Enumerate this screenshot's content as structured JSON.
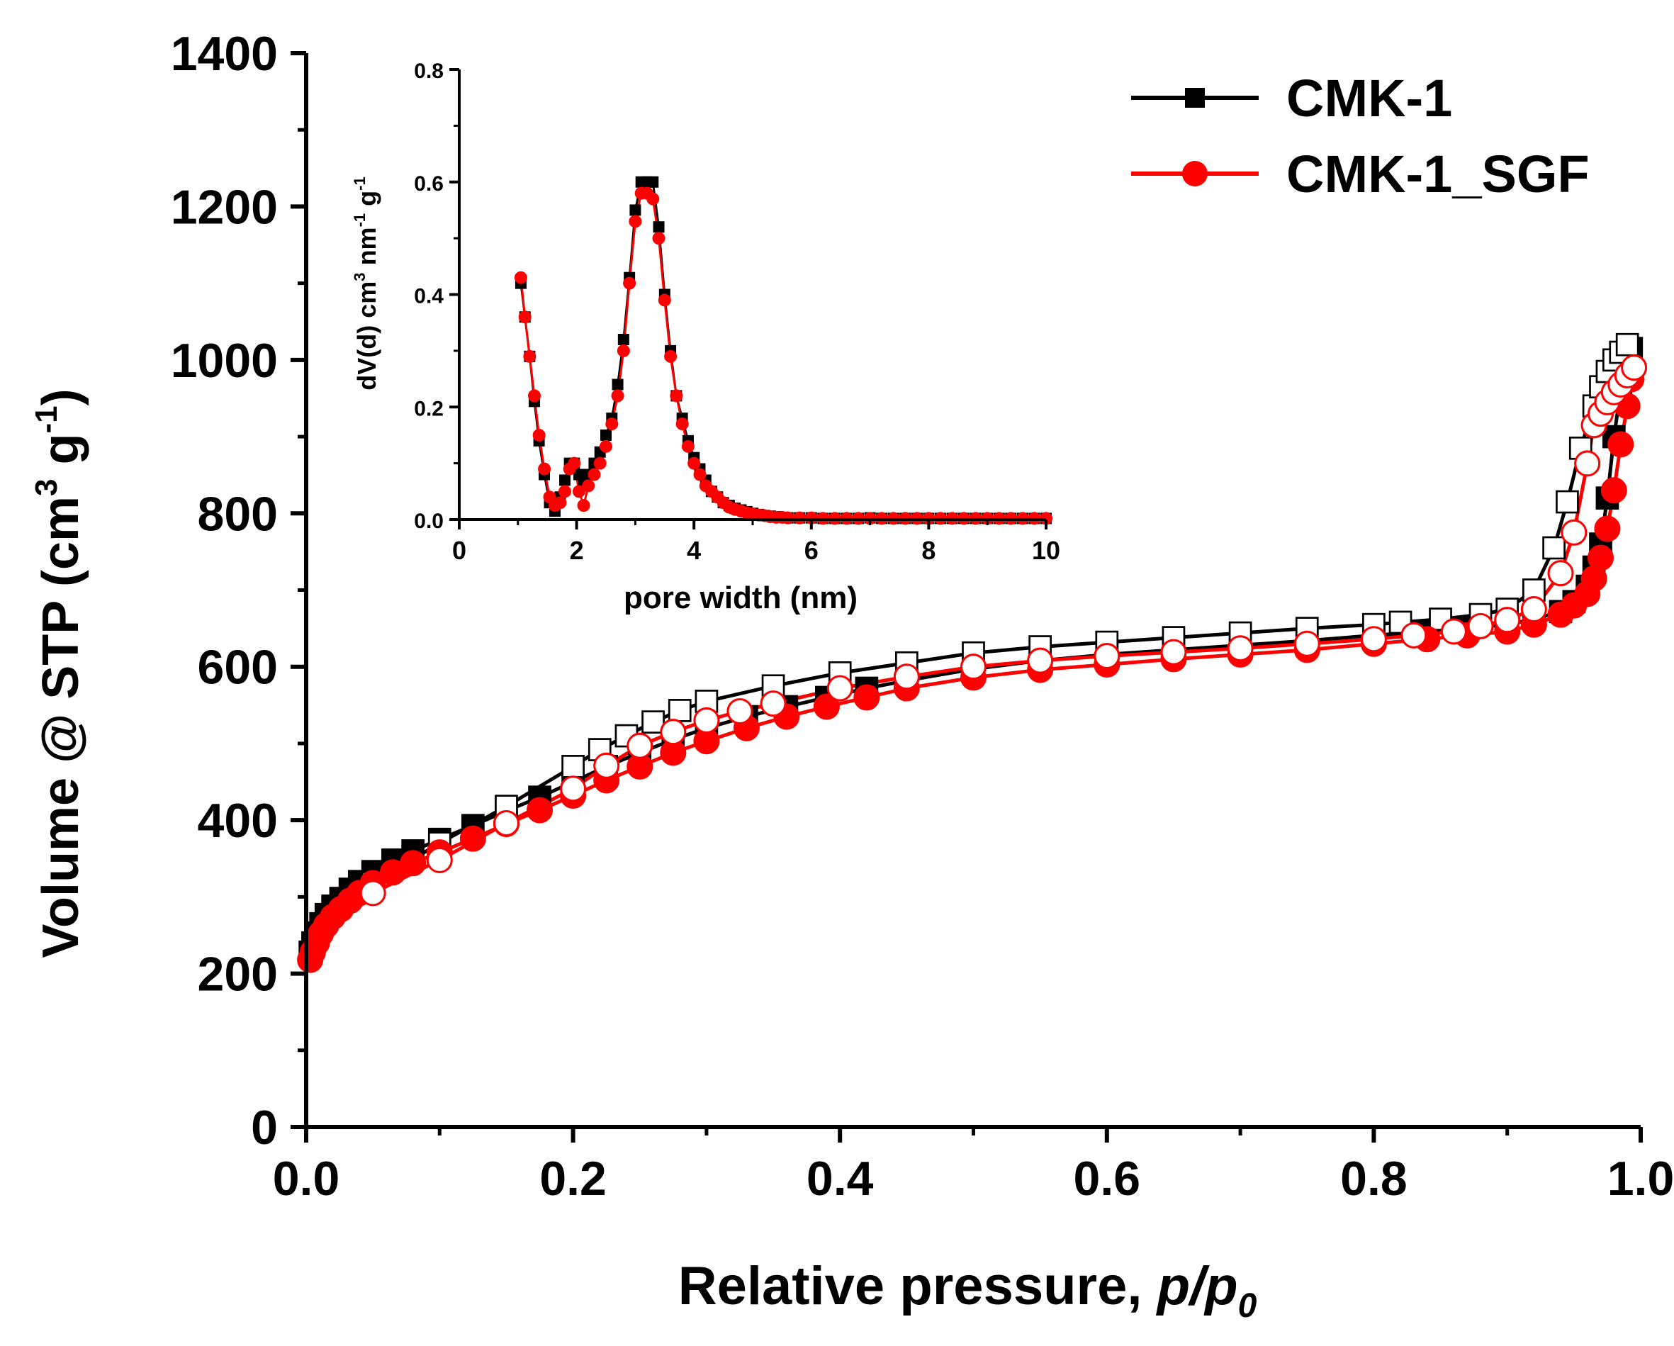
{
  "colors": {
    "series1": "#000000",
    "series2": "#ff0000",
    "open_fill": "#ffffff"
  },
  "chart_data": [
    {
      "type": "scatter",
      "role": "main",
      "ylabel_prefix": "Volume @ STP (cm",
      "ylabel_sup1": "3",
      "ylabel_mid": " g",
      "ylabel_sup2": "-1",
      "ylabel_suffix": ")",
      "xlabel_prefix": "Relative pressure, ",
      "xlabel_p": "p",
      "xlabel_slash": "/",
      "xlabel_p0": "p",
      "xlabel_sub": "0",
      "xlim": [
        0,
        1.0
      ],
      "ylim": [
        0,
        1400
      ],
      "xticks": [
        0.0,
        0.2,
        0.4,
        0.6,
        0.8,
        1.0
      ],
      "xtick_labels": [
        "0.0",
        "0.2",
        "0.4",
        "0.6",
        "0.8",
        "1.0"
      ],
      "yticks": [
        0,
        200,
        400,
        600,
        800,
        1000,
        1200,
        1400
      ],
      "ytick_labels": [
        "0",
        "200",
        "400",
        "600",
        "800",
        "1000",
        "1200",
        "1400"
      ],
      "legend": [
        "CMK-1",
        "CMK-1_SGF"
      ],
      "legend_position": "top-right",
      "series": [
        {
          "name": "CMK-1",
          "marker": "square",
          "adsorption_x": [
            0.003,
            0.005,
            0.008,
            0.011,
            0.015,
            0.02,
            0.026,
            0.033,
            0.04,
            0.05,
            0.065,
            0.08,
            0.1,
            0.125,
            0.15,
            0.175,
            0.2,
            0.225,
            0.25,
            0.275,
            0.3,
            0.33,
            0.36,
            0.39,
            0.42,
            0.45,
            0.5,
            0.55,
            0.6,
            0.65,
            0.7,
            0.75,
            0.8,
            0.84,
            0.87,
            0.9,
            0.92,
            0.94,
            0.95,
            0.96,
            0.965,
            0.97,
            0.975,
            0.98,
            0.985,
            0.99,
            0.993
          ],
          "adsorption_y": [
            228,
            240,
            253,
            265,
            277,
            288,
            298,
            310,
            320,
            333,
            348,
            360,
            375,
            393,
            412,
            430,
            450,
            470,
            488,
            505,
            520,
            535,
            548,
            560,
            572,
            582,
            597,
            608,
            616,
            622,
            628,
            634,
            641,
            646,
            650,
            655,
            662,
            672,
            685,
            705,
            730,
            760,
            820,
            900,
            960,
            1000,
            1015
          ],
          "desorption_x": [
            0.05,
            0.1,
            0.15,
            0.2,
            0.22,
            0.24,
            0.26,
            0.28,
            0.3,
            0.35,
            0.4,
            0.45,
            0.5,
            0.55,
            0.6,
            0.65,
            0.7,
            0.75,
            0.8,
            0.82,
            0.85,
            0.88,
            0.9,
            0.92,
            0.935,
            0.945,
            0.955,
            0.965,
            0.97,
            0.975,
            0.98,
            0.985,
            0.99
          ],
          "desorption_y": [
            318,
            370,
            418,
            470,
            492,
            510,
            528,
            543,
            555,
            575,
            592,
            605,
            618,
            626,
            632,
            638,
            644,
            650,
            655,
            658,
            662,
            668,
            675,
            700,
            755,
            815,
            885,
            940,
            965,
            985,
            1000,
            1010,
            1020
          ]
        },
        {
          "name": "CMK-1_SGF",
          "marker": "circle",
          "adsorption_x": [
            0.003,
            0.005,
            0.008,
            0.011,
            0.015,
            0.02,
            0.026,
            0.033,
            0.04,
            0.05,
            0.065,
            0.08,
            0.1,
            0.125,
            0.15,
            0.175,
            0.2,
            0.225,
            0.25,
            0.275,
            0.3,
            0.33,
            0.36,
            0.39,
            0.42,
            0.45,
            0.5,
            0.55,
            0.6,
            0.65,
            0.7,
            0.75,
            0.8,
            0.84,
            0.87,
            0.9,
            0.92,
            0.94,
            0.95,
            0.96,
            0.965,
            0.97,
            0.975,
            0.98,
            0.985,
            0.99,
            0.993
          ],
          "adsorption_y": [
            218,
            228,
            240,
            252,
            263,
            274,
            284,
            295,
            305,
            318,
            332,
            344,
            358,
            376,
            395,
            413,
            432,
            452,
            470,
            488,
            503,
            520,
            535,
            548,
            560,
            572,
            586,
            596,
            603,
            610,
            616,
            622,
            630,
            636,
            641,
            646,
            655,
            668,
            680,
            695,
            715,
            742,
            780,
            830,
            890,
            940,
            975
          ],
          "desorption_x": [
            0.05,
            0.1,
            0.15,
            0.2,
            0.225,
            0.25,
            0.275,
            0.3,
            0.325,
            0.35,
            0.4,
            0.45,
            0.5,
            0.55,
            0.6,
            0.65,
            0.7,
            0.75,
            0.8,
            0.83,
            0.86,
            0.88,
            0.9,
            0.92,
            0.94,
            0.95,
            0.96,
            0.965,
            0.97,
            0.975,
            0.98,
            0.985,
            0.99,
            0.995
          ],
          "desorption_y": [
            305,
            348,
            396,
            441,
            471,
            497,
            515,
            530,
            542,
            552,
            572,
            587,
            600,
            608,
            614,
            619,
            624,
            630,
            636,
            641,
            646,
            653,
            661,
            675,
            722,
            775,
            865,
            915,
            930,
            945,
            958,
            968,
            980,
            990
          ]
        }
      ]
    },
    {
      "type": "line",
      "role": "inset",
      "xlabel": "pore width (nm)",
      "ylabel_prefix": "dV(d) cm",
      "ylabel_sup1": "3",
      "ylabel_mid": " nm",
      "ylabel_sup2": "-1",
      "ylabel_mid2": " g",
      "ylabel_sup3": "-1",
      "xlim": [
        0,
        10
      ],
      "ylim": [
        0,
        0.8
      ],
      "xticks": [
        0,
        2,
        4,
        6,
        8,
        10
      ],
      "xtick_labels": [
        "0",
        "2",
        "4",
        "6",
        "8",
        "10"
      ],
      "yticks": [
        0.0,
        0.2,
        0.4,
        0.6,
        0.8
      ],
      "ytick_labels": [
        "0.0",
        "0.2",
        "0.4",
        "0.6",
        "0.8"
      ],
      "series": [
        {
          "name": "CMK-1",
          "marker": "square",
          "x": [
            1.05,
            1.12,
            1.2,
            1.28,
            1.36,
            1.45,
            1.54,
            1.63,
            1.72,
            1.8,
            1.88,
            1.96,
            2.04,
            2.12,
            2.2,
            2.3,
            2.4,
            2.5,
            2.6,
            2.7,
            2.8,
            2.9,
            3.0,
            3.1,
            3.2,
            3.3,
            3.4,
            3.5,
            3.6,
            3.7,
            3.8,
            3.9,
            4.0,
            4.1,
            4.2,
            4.3,
            4.4,
            4.5,
            4.6,
            4.7,
            4.8,
            4.9,
            5.0,
            5.1,
            5.2,
            5.3,
            5.4,
            5.5,
            5.6,
            5.8,
            6.0,
            6.2,
            6.4,
            6.6,
            6.8,
            7.0,
            7.2,
            7.4,
            7.6,
            7.8,
            8.0,
            8.2,
            8.4,
            8.6,
            8.8,
            9.0,
            9.2,
            9.4,
            9.6,
            9.8,
            10.0
          ],
          "y": [
            0.42,
            0.36,
            0.29,
            0.21,
            0.14,
            0.08,
            0.03,
            0.015,
            0.04,
            0.07,
            0.1,
            0.1,
            0.08,
            0.07,
            0.08,
            0.1,
            0.12,
            0.15,
            0.18,
            0.24,
            0.32,
            0.43,
            0.55,
            0.6,
            0.6,
            0.6,
            0.52,
            0.4,
            0.3,
            0.22,
            0.18,
            0.14,
            0.11,
            0.09,
            0.07,
            0.05,
            0.04,
            0.03,
            0.025,
            0.02,
            0.017,
            0.014,
            0.011,
            0.009,
            0.007,
            0.006,
            0.005,
            0.004,
            0.003,
            0.003,
            0.003,
            0.002,
            0.002,
            0.002,
            0.002,
            0.003,
            0.002,
            0.002,
            0.002,
            0.002,
            0.002,
            0.002,
            0.002,
            0.002,
            0.002,
            0.002,
            0.002,
            0.002,
            0.002,
            0.002,
            0.002
          ]
        },
        {
          "name": "CMK-1_SGF",
          "marker": "circle",
          "x": [
            1.05,
            1.12,
            1.2,
            1.28,
            1.36,
            1.45,
            1.54,
            1.63,
            1.72,
            1.8,
            1.88,
            1.96,
            2.04,
            2.12,
            2.2,
            2.3,
            2.4,
            2.5,
            2.6,
            2.7,
            2.8,
            2.9,
            3.0,
            3.1,
            3.2,
            3.3,
            3.4,
            3.5,
            3.6,
            3.7,
            3.8,
            3.9,
            4.0,
            4.1,
            4.2,
            4.3,
            4.4,
            4.5,
            4.6,
            4.7,
            4.8,
            4.9,
            5.0,
            5.1,
            5.2,
            5.3,
            5.4,
            5.5,
            5.6,
            5.8,
            6.0,
            6.2,
            6.4,
            6.6,
            6.8,
            7.0,
            7.2,
            7.4,
            7.6,
            7.8,
            8.0,
            8.2,
            8.4,
            8.6,
            8.8,
            9.0,
            9.2,
            9.4,
            9.6,
            9.8,
            10.0
          ],
          "y": [
            0.43,
            0.36,
            0.29,
            0.22,
            0.15,
            0.09,
            0.04,
            0.025,
            0.03,
            0.05,
            0.09,
            0.1,
            0.05,
            0.025,
            0.06,
            0.08,
            0.1,
            0.13,
            0.17,
            0.22,
            0.3,
            0.42,
            0.53,
            0.58,
            0.58,
            0.57,
            0.5,
            0.39,
            0.29,
            0.22,
            0.17,
            0.13,
            0.1,
            0.08,
            0.06,
            0.05,
            0.04,
            0.03,
            0.022,
            0.018,
            0.015,
            0.012,
            0.01,
            0.008,
            0.007,
            0.005,
            0.004,
            0.004,
            0.003,
            0.003,
            0.003,
            0.002,
            0.002,
            0.002,
            0.002,
            0.002,
            0.002,
            0.002,
            0.002,
            0.002,
            0.002,
            0.002,
            0.002,
            0.002,
            0.002,
            0.002,
            0.002,
            0.002,
            0.002,
            0.002,
            0.002
          ]
        }
      ]
    }
  ]
}
